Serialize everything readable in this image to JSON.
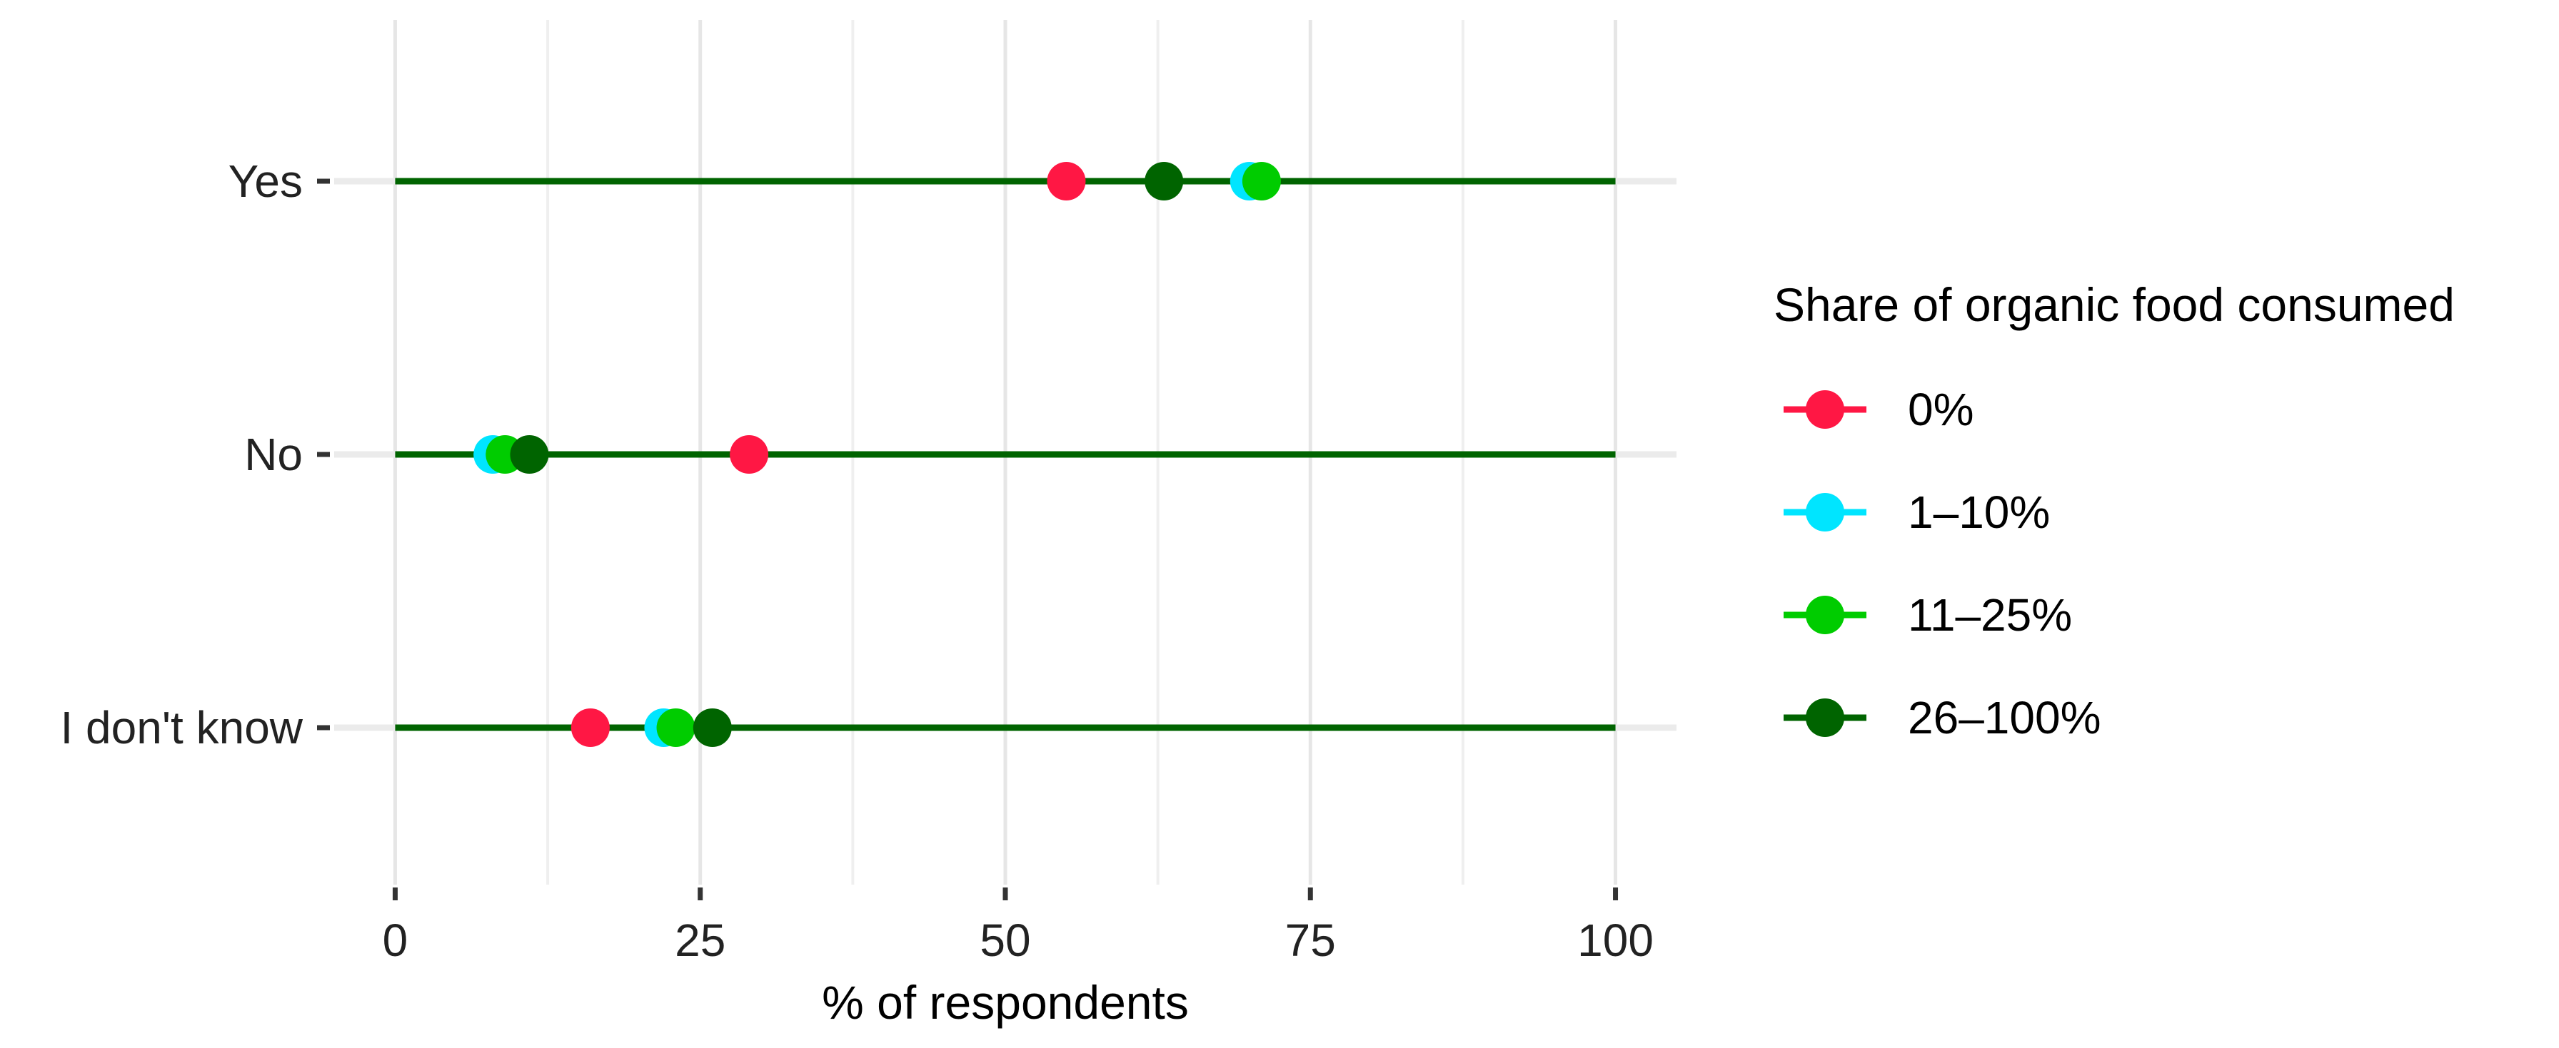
{
  "chart_data": {
    "type": "scatter",
    "subtype": "dot-plot",
    "orientation": "horizontal",
    "categories": [
      "Yes",
      "No",
      "I don't know"
    ],
    "xlabel": "% of respondents",
    "ylabel": "",
    "xlim": [
      -5,
      105
    ],
    "x_ticks": [
      0,
      25,
      50,
      75,
      100
    ],
    "grid": "on",
    "line_span": [
      0,
      100
    ],
    "line_color": "#006400",
    "legend": {
      "title": "Share of organic food consumed",
      "placement": "right"
    },
    "series": [
      {
        "name": "0%",
        "color": "#FF1744",
        "values": [
          55,
          29,
          16
        ]
      },
      {
        "name": "1–10%",
        "color": "#00E5FF",
        "values": [
          70,
          8,
          22
        ]
      },
      {
        "name": "11–25%",
        "color": "#00CC00",
        "values": [
          71,
          9,
          23
        ]
      },
      {
        "name": "26–100%",
        "color": "#006400",
        "values": [
          63,
          11,
          26
        ]
      }
    ]
  }
}
